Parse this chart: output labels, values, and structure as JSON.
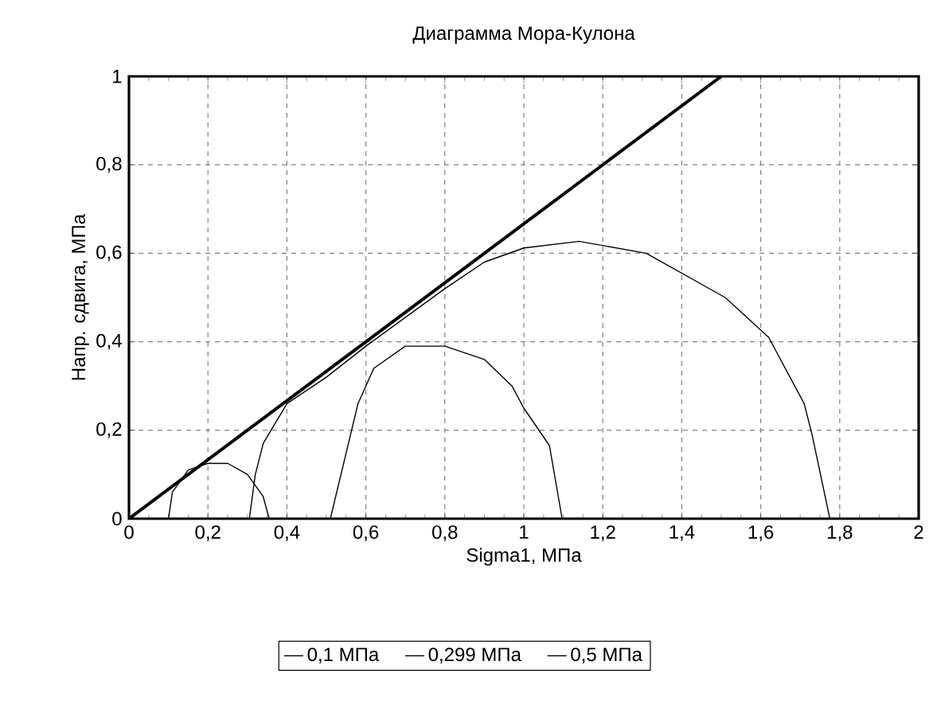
{
  "chart_data": {
    "type": "line",
    "title": "Диаграмма Мора-Кулона",
    "xlabel": "Sigma1, МПа",
    "ylabel": "Напр. сдвига, МПа",
    "xlim": [
      0,
      2
    ],
    "ylim": [
      0,
      1
    ],
    "xticks": [
      0,
      {
        "value": 0.2,
        "label": "0,2"
      },
      {
        "value": 0.4,
        "label": "0,4"
      },
      {
        "value": 0.6,
        "label": "0,6"
      },
      {
        "value": 0.8,
        "label": "0,8"
      },
      1,
      {
        "value": 1.2,
        "label": "1,2"
      },
      {
        "value": 1.4,
        "label": "1,4"
      },
      {
        "value": 1.6,
        "label": "1,6"
      },
      {
        "value": 1.8,
        "label": "1,8"
      },
      2
    ],
    "yticks": [
      0,
      {
        "value": 0.2,
        "label": "0,2"
      },
      {
        "value": 0.4,
        "label": "0,4"
      },
      {
        "value": 0.6,
        "label": "0,6"
      },
      {
        "value": 0.8,
        "label": "0,8"
      },
      1
    ],
    "grid": true,
    "legend": "bottom",
    "line_style": "solid",
    "marker": "none",
    "series": [
      {
        "color": "#000000",
        "x": [
          0,
          1.5
        ],
        "values": [
          0,
          1
        ]
      },
      {
        "name": "0,1 МПа",
        "color": "#000000",
        "x": [
          0.1,
          0.11,
          0.15,
          0.2,
          0.25,
          0.3,
          0.34,
          0.355
        ],
        "values": [
          0,
          0.06,
          0.11,
          0.125,
          0.125,
          0.1,
          0.05,
          0
        ]
      },
      {
        "name": "0,299 МПа",
        "color": "#000000",
        "x": [
          0.305,
          0.32,
          0.34,
          0.4,
          0.5,
          0.6,
          0.7,
          0.8,
          0.9,
          1.0,
          1.14,
          1.31,
          1.51,
          1.62,
          1.71,
          1.73,
          1.775
        ],
        "values": [
          0,
          0.1,
          0.17,
          0.26,
          0.32,
          0.39,
          0.455,
          0.52,
          0.58,
          0.612,
          0.627,
          0.6,
          0.5,
          0.41,
          0.26,
          0.19,
          0
        ]
      },
      {
        "name": "0,5 МПа",
        "color": "#000000",
        "x": [
          0.51,
          0.58,
          0.62,
          0.7,
          0.8,
          0.9,
          0.97,
          1.0,
          1.065,
          1.097
        ],
        "values": [
          0,
          0.26,
          0.34,
          0.39,
          0.39,
          0.36,
          0.3,
          0.25,
          0.165,
          0
        ]
      }
    ]
  }
}
